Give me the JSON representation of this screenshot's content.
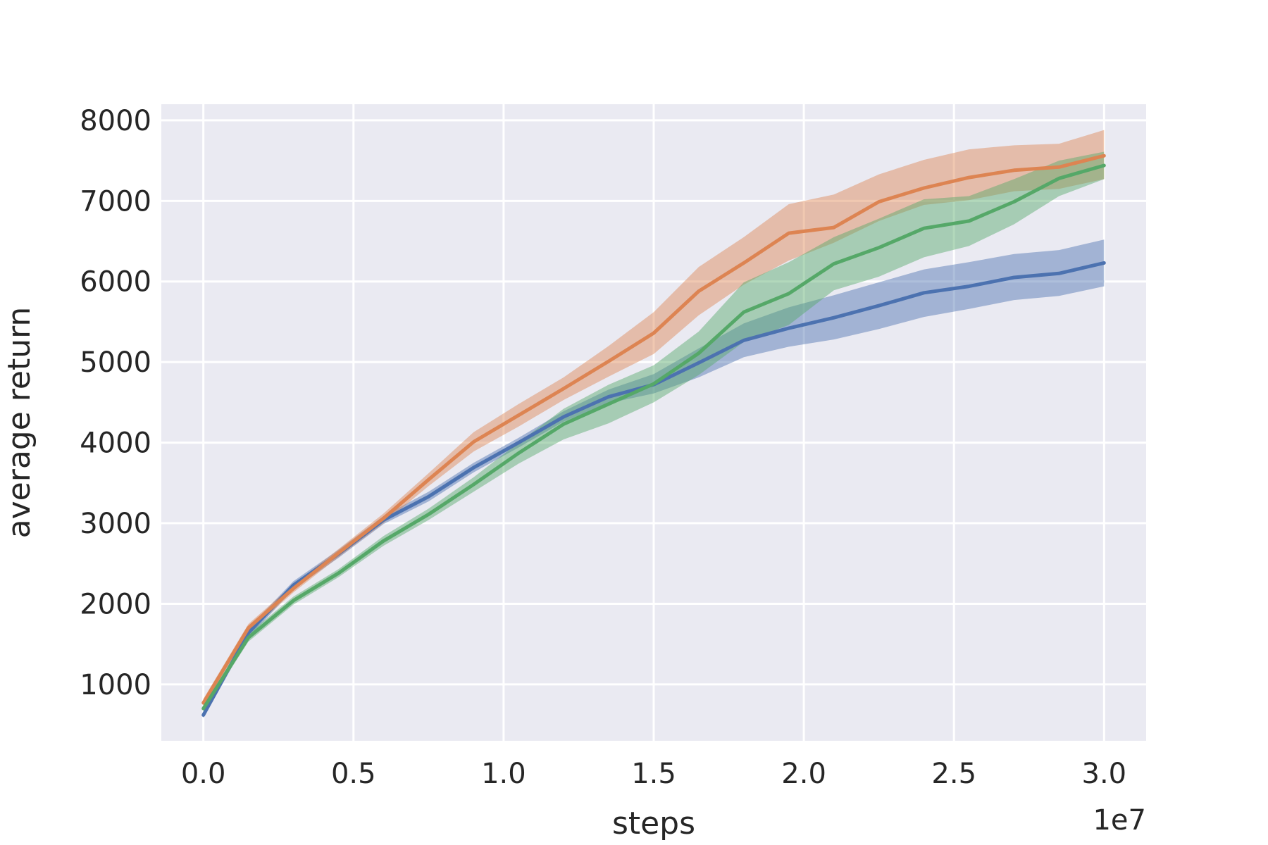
{
  "chart_data": {
    "type": "line",
    "title": "",
    "xlabel": "steps",
    "ylabel": "average return",
    "x_offset_label": "1e7",
    "xlim": [
      -0.14,
      3.14
    ],
    "ylim": [
      300,
      8200
    ],
    "grid": true,
    "x_ticks": [
      0.0,
      0.5,
      1.0,
      1.5,
      2.0,
      2.5,
      3.0
    ],
    "x_tick_labels": [
      "0.0",
      "0.5",
      "1.0",
      "1.5",
      "2.0",
      "2.5",
      "3.0"
    ],
    "y_ticks": [
      1000,
      2000,
      3000,
      4000,
      5000,
      6000,
      7000,
      8000
    ],
    "y_tick_labels": [
      "1000",
      "2000",
      "3000",
      "4000",
      "5000",
      "6000",
      "7000",
      "8000"
    ],
    "x": [
      0.0,
      0.15,
      0.3,
      0.45,
      0.6,
      0.75,
      0.9,
      1.05,
      1.2,
      1.35,
      1.5,
      1.65,
      1.8,
      1.95,
      2.1,
      2.25,
      2.4,
      2.55,
      2.7,
      2.85,
      3.0
    ],
    "series": [
      {
        "color": "#4c72b0",
        "values": [
          620,
          1640,
          2230,
          2620,
          3040,
          3330,
          3690,
          4000,
          4320,
          4570,
          4720,
          4990,
          5270,
          5420,
          5550,
          5700,
          5860,
          5940,
          6050,
          6100,
          6230
        ],
        "lower": [
          580,
          1580,
          2180,
          2570,
          2990,
          3270,
          3630,
          3940,
          4260,
          4490,
          4610,
          4810,
          5060,
          5190,
          5280,
          5410,
          5560,
          5660,
          5770,
          5820,
          5940
        ],
        "upper": [
          660,
          1700,
          2280,
          2670,
          3090,
          3390,
          3750,
          4060,
          4390,
          4660,
          4850,
          5170,
          5480,
          5680,
          5830,
          5990,
          6150,
          6240,
          6340,
          6390,
          6520
        ]
      },
      {
        "color": "#dd8452",
        "values": [
          770,
          1700,
          2190,
          2630,
          3060,
          3540,
          4010,
          4340,
          4670,
          5010,
          5360,
          5880,
          6230,
          6600,
          6670,
          6990,
          7160,
          7290,
          7380,
          7420,
          7560
        ],
        "lower": [
          720,
          1650,
          2140,
          2580,
          3000,
          3460,
          3890,
          4200,
          4530,
          4820,
          5100,
          5580,
          5960,
          6260,
          6480,
          6750,
          6950,
          7010,
          7120,
          7150,
          7270
        ],
        "upper": [
          820,
          1750,
          2240,
          2680,
          3120,
          3620,
          4130,
          4480,
          4810,
          5200,
          5620,
          6180,
          6550,
          6960,
          7080,
          7330,
          7510,
          7640,
          7690,
          7710,
          7880
        ]
      },
      {
        "color": "#55a868",
        "values": [
          700,
          1580,
          2040,
          2380,
          2780,
          3110,
          3480,
          3870,
          4230,
          4480,
          4730,
          5110,
          5620,
          5850,
          6220,
          6420,
          6660,
          6750,
          6990,
          7280,
          7440
        ],
        "lower": [
          660,
          1530,
          1990,
          2330,
          2720,
          3040,
          3390,
          3740,
          4040,
          4240,
          4500,
          4840,
          5250,
          5460,
          5890,
          6060,
          6300,
          6440,
          6710,
          7060,
          7270
        ],
        "upper": [
          740,
          1630,
          2090,
          2430,
          2840,
          3180,
          3570,
          4000,
          4420,
          4720,
          4960,
          5380,
          5990,
          6240,
          6550,
          6780,
          7020,
          7060,
          7270,
          7500,
          7610
        ]
      }
    ]
  }
}
